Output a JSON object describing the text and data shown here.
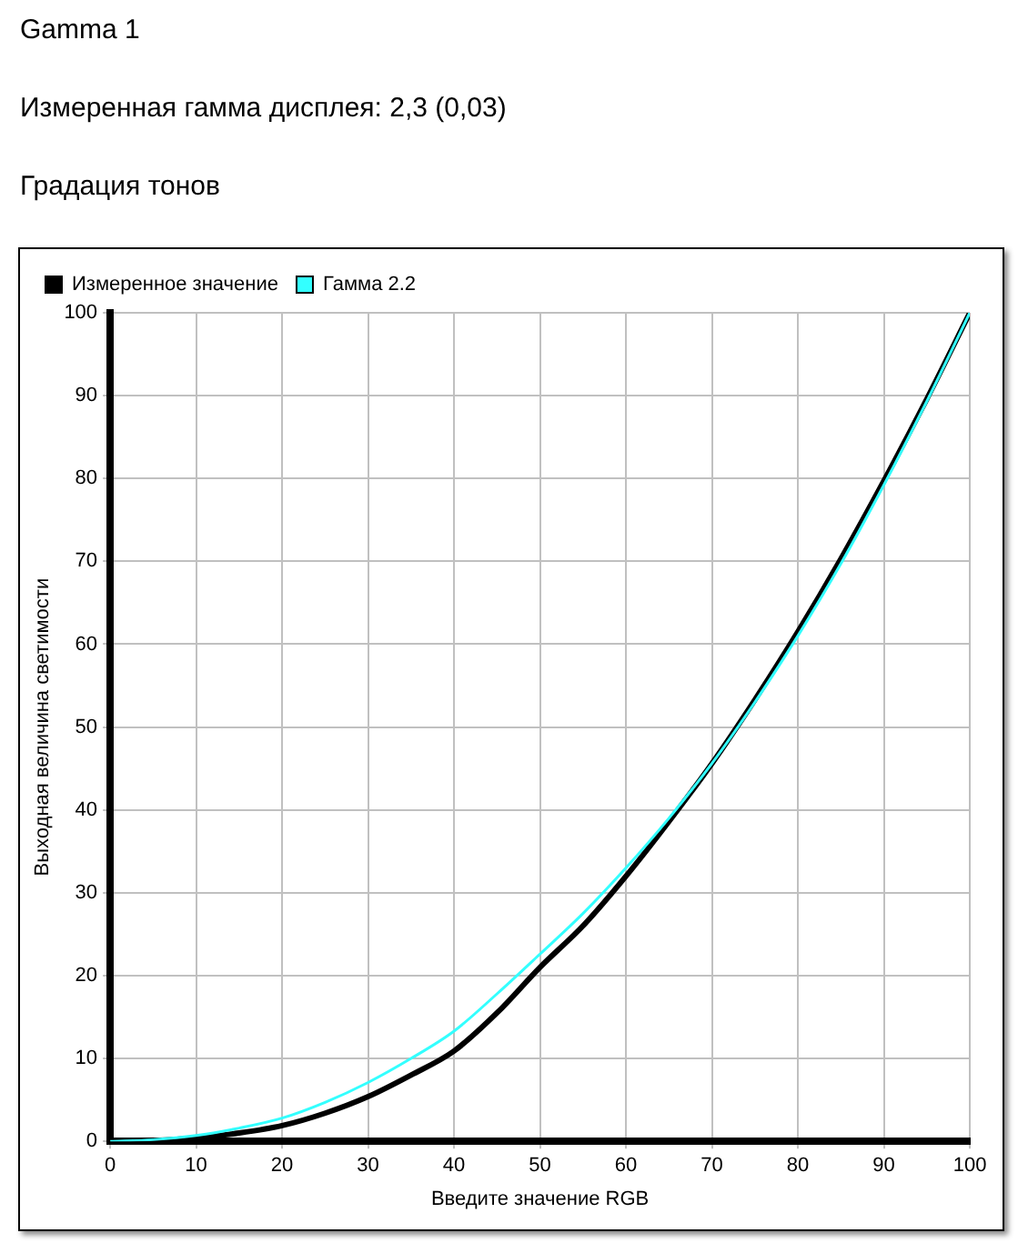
{
  "chart_data": {
    "type": "line",
    "title": "Gamma 1",
    "subtitle": "Измеренная гамма дисплея: 2,3 (0,03)",
    "annotations": [
      "Градация тонов"
    ],
    "xlabel": "Введите значение RGB",
    "ylabel": "Выходная величина светимости",
    "x": [
      0,
      5,
      10,
      15,
      20,
      25,
      30,
      35,
      40,
      45,
      50,
      55,
      60,
      65,
      70,
      75,
      80,
      85,
      90,
      95,
      100
    ],
    "series": [
      {
        "name": "Гамма 2.2",
        "color": "#33ffff",
        "values": [
          0,
          0.2,
          0.7,
          1.6,
          2.8,
          4.7,
          7.1,
          10,
          13.3,
          17.8,
          22.6,
          27.5,
          33,
          39,
          45.6,
          53,
          61,
          69.7,
          79.2,
          89.3,
          100
        ]
      },
      {
        "name": "Измеренное значение",
        "color": "#000000",
        "values": [
          0,
          0.1,
          0.4,
          1,
          1.9,
          3.4,
          5.4,
          8,
          10.9,
          15.5,
          21,
          26,
          32,
          38.6,
          45.6,
          53.3,
          61.5,
          70.3,
          79.7,
          89.6,
          100
        ]
      }
    ],
    "xlim": [
      0,
      100
    ],
    "xticks": [
      0,
      10,
      20,
      30,
      40,
      50,
      60,
      70,
      80,
      90,
      100
    ],
    "ylim": [
      0,
      100
    ],
    "yticks": [
      0,
      10,
      20,
      30,
      40,
      50,
      60,
      70,
      80,
      90,
      100
    ],
    "grid": true,
    "legend": "top left",
    "marker": "none",
    "line_style": "solid"
  }
}
